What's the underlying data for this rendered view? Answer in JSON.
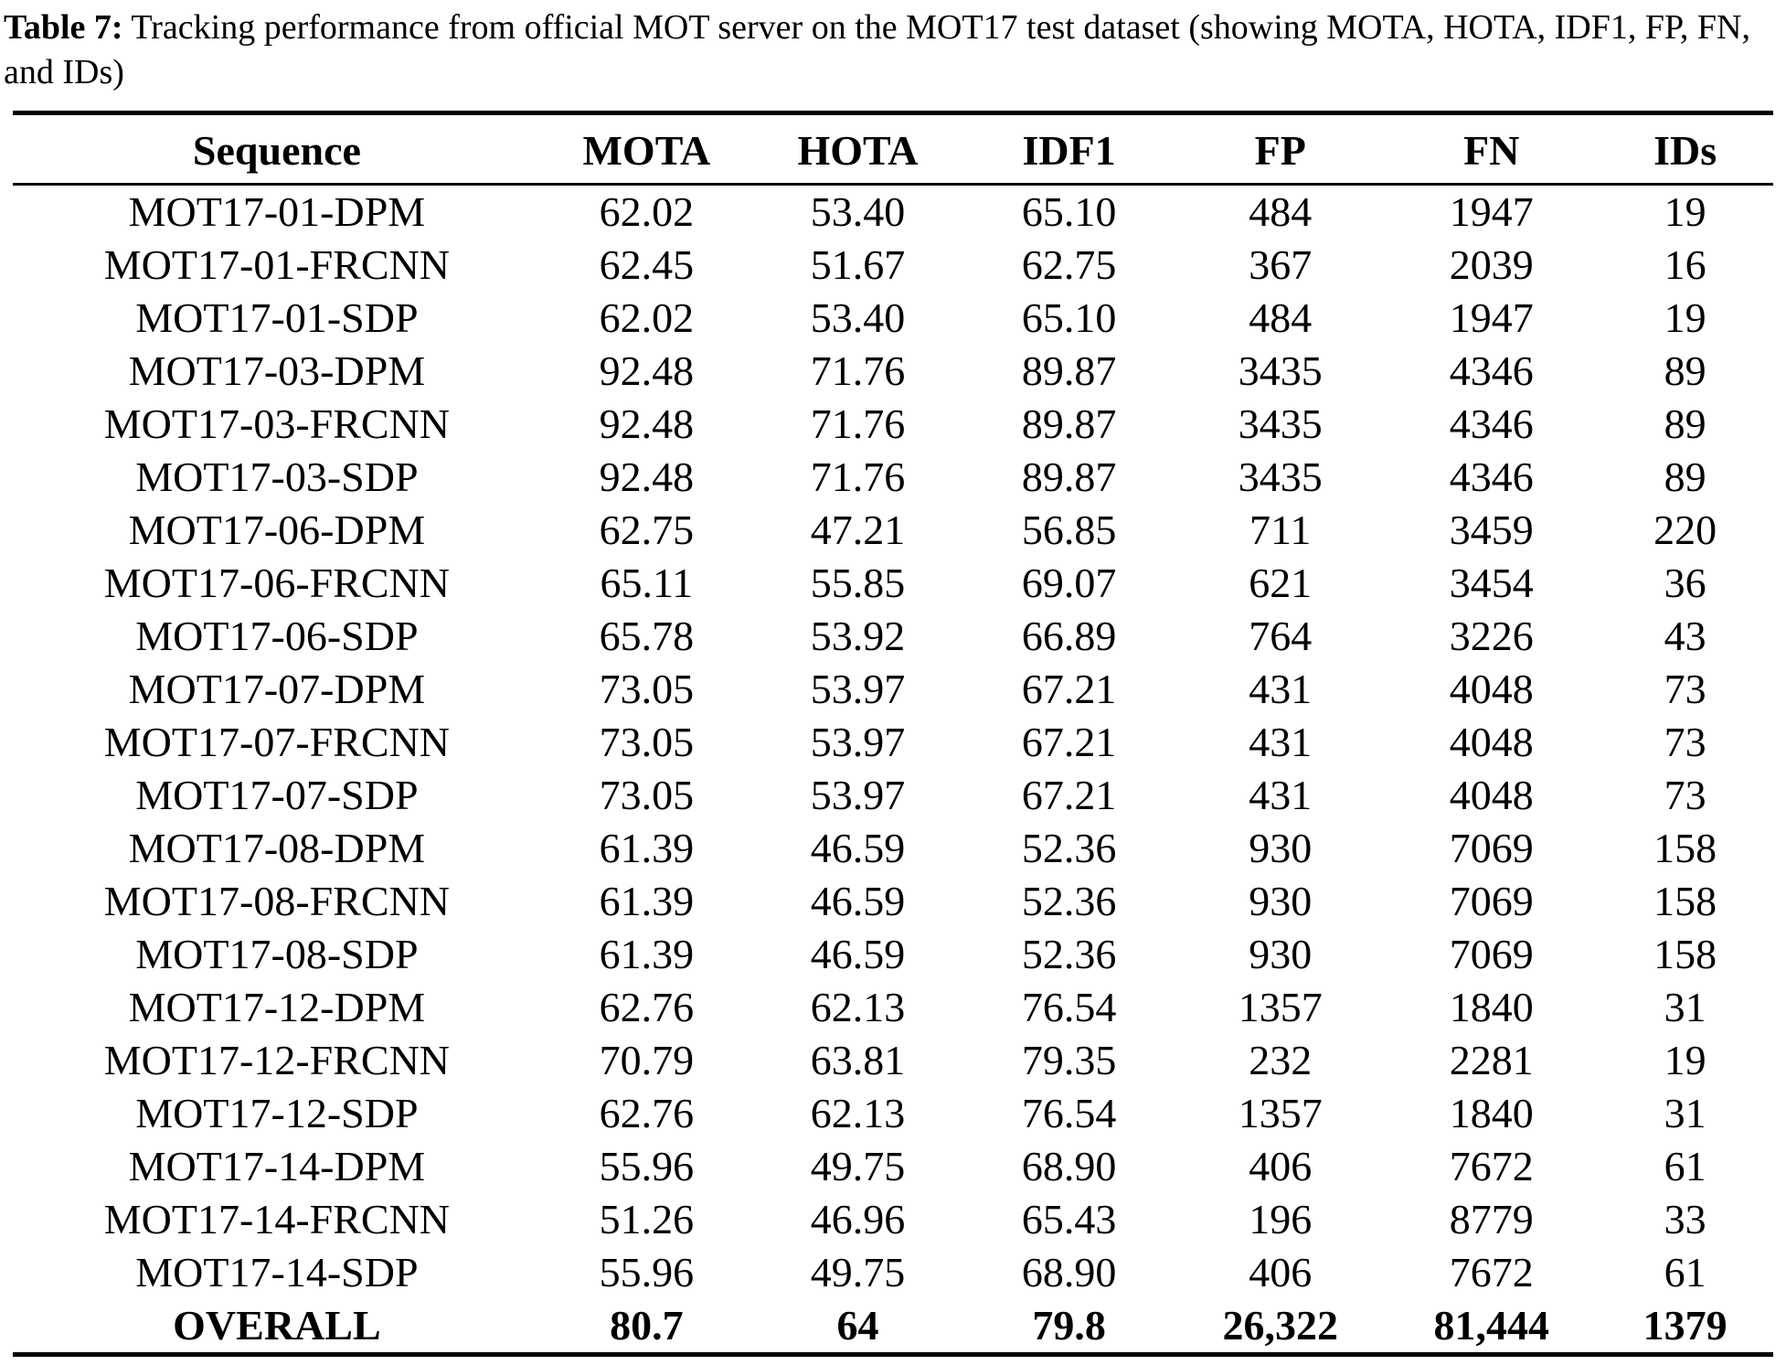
{
  "caption": {
    "label": "Table 7:",
    "text": "Tracking performance from official MOT server on the MOT17 test dataset (showing MOTA, HOTA, IDF1, FP, FN, and IDs)"
  },
  "chart_data": {
    "type": "table",
    "title": "Table 7: Tracking performance from official MOT server on the MOT17 test dataset (showing MOTA, HOTA, IDF1, FP, FN, and IDs)"
  },
  "table": {
    "columns": [
      "Sequence",
      "MOTA",
      "HOTA",
      "IDF1",
      "FP",
      "FN",
      "IDs"
    ],
    "rows": [
      [
        "MOT17-01-DPM",
        "62.02",
        "53.40",
        "65.10",
        "484",
        "1947",
        "19"
      ],
      [
        "MOT17-01-FRCNN",
        "62.45",
        "51.67",
        "62.75",
        "367",
        "2039",
        "16"
      ],
      [
        "MOT17-01-SDP",
        "62.02",
        "53.40",
        "65.10",
        "484",
        "1947",
        "19"
      ],
      [
        "MOT17-03-DPM",
        "92.48",
        "71.76",
        "89.87",
        "3435",
        "4346",
        "89"
      ],
      [
        "MOT17-03-FRCNN",
        "92.48",
        "71.76",
        "89.87",
        "3435",
        "4346",
        "89"
      ],
      [
        "MOT17-03-SDP",
        "92.48",
        "71.76",
        "89.87",
        "3435",
        "4346",
        "89"
      ],
      [
        "MOT17-06-DPM",
        "62.75",
        "47.21",
        "56.85",
        "711",
        "3459",
        "220"
      ],
      [
        "MOT17-06-FRCNN",
        "65.11",
        "55.85",
        "69.07",
        "621",
        "3454",
        "36"
      ],
      [
        "MOT17-06-SDP",
        "65.78",
        "53.92",
        "66.89",
        "764",
        "3226",
        "43"
      ],
      [
        "MOT17-07-DPM",
        "73.05",
        "53.97",
        "67.21",
        "431",
        "4048",
        "73"
      ],
      [
        "MOT17-07-FRCNN",
        "73.05",
        "53.97",
        "67.21",
        "431",
        "4048",
        "73"
      ],
      [
        "MOT17-07-SDP",
        "73.05",
        "53.97",
        "67.21",
        "431",
        "4048",
        "73"
      ],
      [
        "MOT17-08-DPM",
        "61.39",
        "46.59",
        "52.36",
        "930",
        "7069",
        "158"
      ],
      [
        "MOT17-08-FRCNN",
        "61.39",
        "46.59",
        "52.36",
        "930",
        "7069",
        "158"
      ],
      [
        "MOT17-08-SDP",
        "61.39",
        "46.59",
        "52.36",
        "930",
        "7069",
        "158"
      ],
      [
        "MOT17-12-DPM",
        "62.76",
        "62.13",
        "76.54",
        "1357",
        "1840",
        "31"
      ],
      [
        "MOT17-12-FRCNN",
        "70.79",
        "63.81",
        "79.35",
        "232",
        "2281",
        "19"
      ],
      [
        "MOT17-12-SDP",
        "62.76",
        "62.13",
        "76.54",
        "1357",
        "1840",
        "31"
      ],
      [
        "MOT17-14-DPM",
        "55.96",
        "49.75",
        "68.90",
        "406",
        "7672",
        "61"
      ],
      [
        "MOT17-14-FRCNN",
        "51.26",
        "46.96",
        "65.43",
        "196",
        "8779",
        "33"
      ],
      [
        "MOT17-14-SDP",
        "55.96",
        "49.75",
        "68.90",
        "406",
        "7672",
        "61"
      ]
    ],
    "overall_row": [
      "OVERALL",
      "80.7",
      "64",
      "79.8",
      "26,322",
      "81,444",
      "1379"
    ]
  }
}
